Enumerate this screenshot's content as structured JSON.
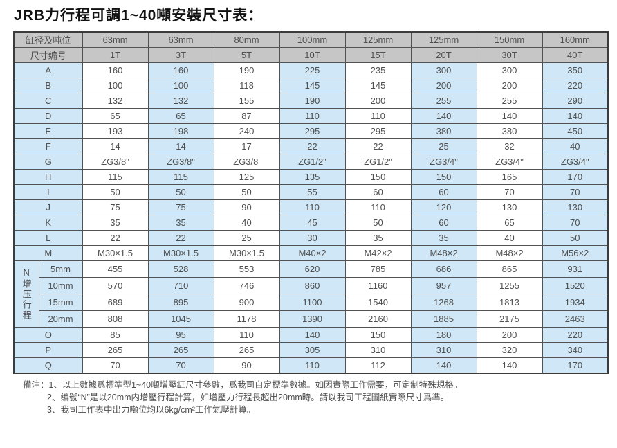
{
  "title": "JRB力行程可調1~40噸安裝尺寸表：",
  "table": {
    "header_row1": [
      "缸径及吨位",
      "63mm",
      "63mm",
      "80mm",
      "100mm",
      "125mm",
      "125mm",
      "150mm",
      "160mm"
    ],
    "header_row2": [
      "尺寸编号",
      "1T",
      "3T",
      "5T",
      "10T",
      "15T",
      "20T",
      "30T",
      "40T"
    ],
    "rows_top": [
      {
        "label": "A",
        "values": [
          "160",
          "160",
          "190",
          "225",
          "235",
          "300",
          "300",
          "350"
        ]
      },
      {
        "label": "B",
        "values": [
          "100",
          "100",
          "118",
          "145",
          "145",
          "200",
          "200",
          "220"
        ]
      },
      {
        "label": "C",
        "values": [
          "132",
          "132",
          "155",
          "190",
          "200",
          "255",
          "255",
          "290"
        ]
      },
      {
        "label": "D",
        "values": [
          "65",
          "65",
          "87",
          "110",
          "110",
          "140",
          "140",
          "140"
        ]
      },
      {
        "label": "E",
        "values": [
          "193",
          "198",
          "240",
          "295",
          "295",
          "380",
          "380",
          "450"
        ]
      },
      {
        "label": "F",
        "values": [
          "14",
          "14",
          "17",
          "22",
          "22",
          "25",
          "32",
          "40"
        ]
      },
      {
        "label": "G",
        "values": [
          "ZG3/8\"",
          "ZG3/8\"",
          "ZG3/8'",
          "ZG1/2\"",
          "ZG1/2\"",
          "ZG3/4\"",
          "ZG3/4\"",
          "ZG3/4\""
        ]
      },
      {
        "label": "H",
        "values": [
          "115",
          "115",
          "125",
          "135",
          "150",
          "150",
          "165",
          "170"
        ]
      },
      {
        "label": "I",
        "values": [
          "50",
          "50",
          "50",
          "55",
          "60",
          "60",
          "70",
          "70"
        ]
      },
      {
        "label": "J",
        "values": [
          "75",
          "75",
          "90",
          "110",
          "110",
          "120",
          "130",
          "130"
        ]
      },
      {
        "label": "K",
        "values": [
          "35",
          "35",
          "40",
          "45",
          "50",
          "60",
          "65",
          "70"
        ]
      },
      {
        "label": "L",
        "values": [
          "22",
          "22",
          "25",
          "30",
          "35",
          "35",
          "40",
          "50"
        ]
      },
      {
        "label": "M",
        "values": [
          "M30×1.5",
          "M30×1.5",
          "M30×1.5",
          "M40×2",
          "M42×2",
          "M48×2",
          "M48×2",
          "M56×2"
        ]
      }
    ],
    "n_section": {
      "label": "N增压行程",
      "rows": [
        {
          "label": "5mm",
          "values": [
            "455",
            "528",
            "553",
            "620",
            "785",
            "686",
            "865",
            "931"
          ]
        },
        {
          "label": "10mm",
          "values": [
            "570",
            "710",
            "746",
            "860",
            "1160",
            "957",
            "1255",
            "1520"
          ]
        },
        {
          "label": "15mm",
          "values": [
            "689",
            "895",
            "900",
            "1100",
            "1540",
            "1268",
            "1813",
            "1934"
          ]
        },
        {
          "label": "20mm",
          "values": [
            "808",
            "1045",
            "1178",
            "1390",
            "2160",
            "1885",
            "2175",
            "2463"
          ]
        }
      ]
    },
    "rows_bottom": [
      {
        "label": "O",
        "values": [
          "85",
          "95",
          "110",
          "140",
          "150",
          "180",
          "200",
          "220"
        ]
      },
      {
        "label": "P",
        "values": [
          "265",
          "265",
          "265",
          "305",
          "310",
          "310",
          "320",
          "340"
        ]
      },
      {
        "label": "Q",
        "values": [
          "70",
          "70",
          "90",
          "110",
          "112",
          "140",
          "140",
          "170"
        ]
      }
    ]
  },
  "notes": {
    "prefix": "備注：",
    "items": [
      "1、以上數據爲標準型1~40噸增壓缸尺寸參數，爲我司自定標準數據。如因實際工作需要，可定制特殊規格。",
      "2、编號“N”是以20mm内增壓行程計算，如增壓力行程長超出20mm時。請以我司工程圖紙實際尺寸爲準。",
      "3、我司工作表中出力噸位均以6kg/cm²工作氣壓計算。"
    ]
  },
  "colors": {
    "header_bg": "#c6c6c6",
    "cell_blue": "#cfe7f6",
    "border": "#525252",
    "text": "#4f4f4f"
  }
}
